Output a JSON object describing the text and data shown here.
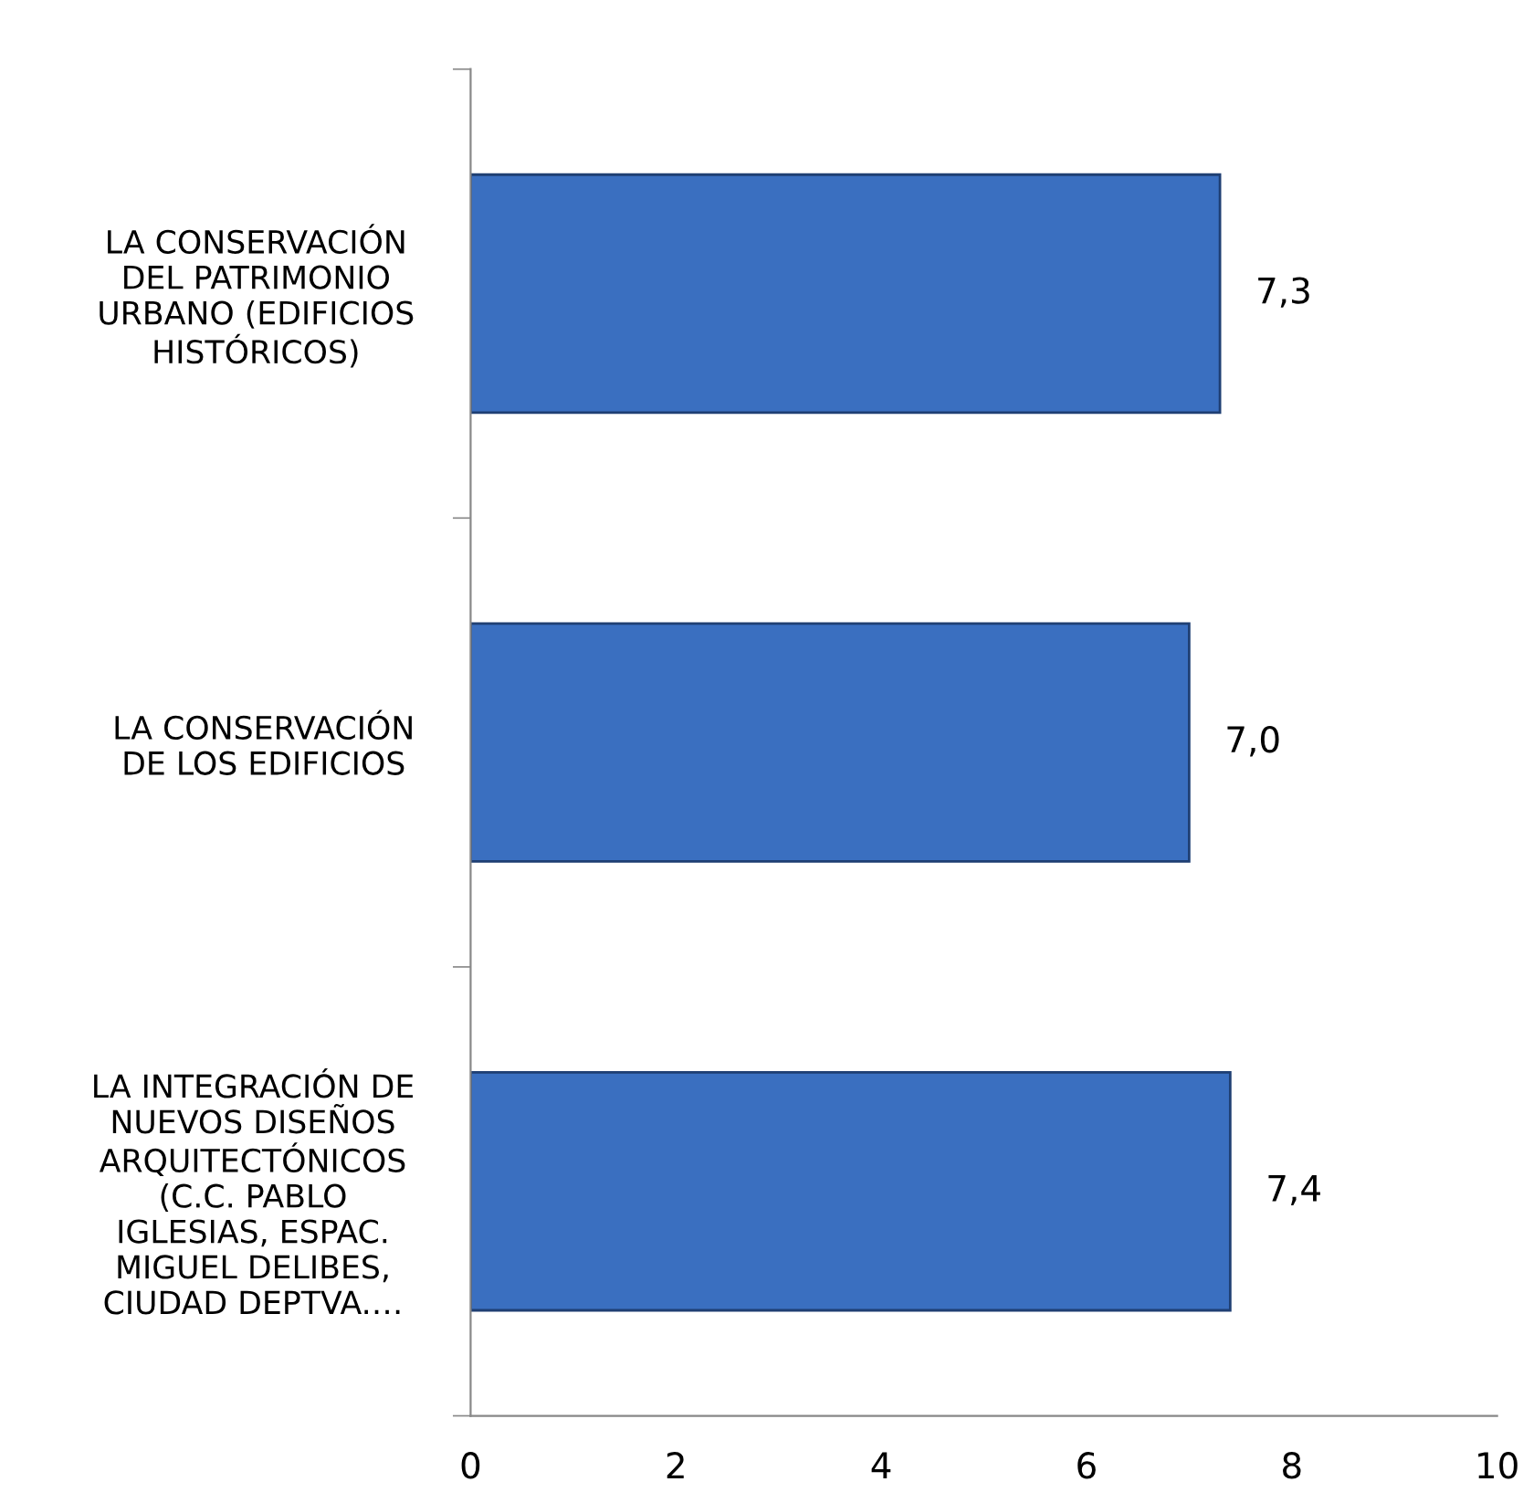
{
  "chart_data": {
    "type": "bar",
    "orientation": "horizontal",
    "categories": [
      "LA CONSERVACIÓN\nDEL PATRIMONIO\nURBANO (EDIFICIOS\nHISTÓRICOS)",
      "LA CONSERVACIÓN\nDE LOS EDIFICIOS",
      "LA INTEGRACIÓN DE\nNUEVOS DISEÑOS\nARQUITECTÓNICOS\n(C.C. PABLO\nIGLESIAS, ESPAC.\nMIGUEL DELIBES,\nCIUDAD DEPTVA.…"
    ],
    "values": [
      7.3,
      7.0,
      7.4
    ],
    "value_labels": [
      "7,3",
      "7,0",
      "7,4"
    ],
    "color": "#3a6fc0",
    "xlim": [
      0,
      10
    ],
    "xticks": [
      0,
      2,
      4,
      6,
      8,
      10
    ],
    "grid": false,
    "legend": false
  }
}
